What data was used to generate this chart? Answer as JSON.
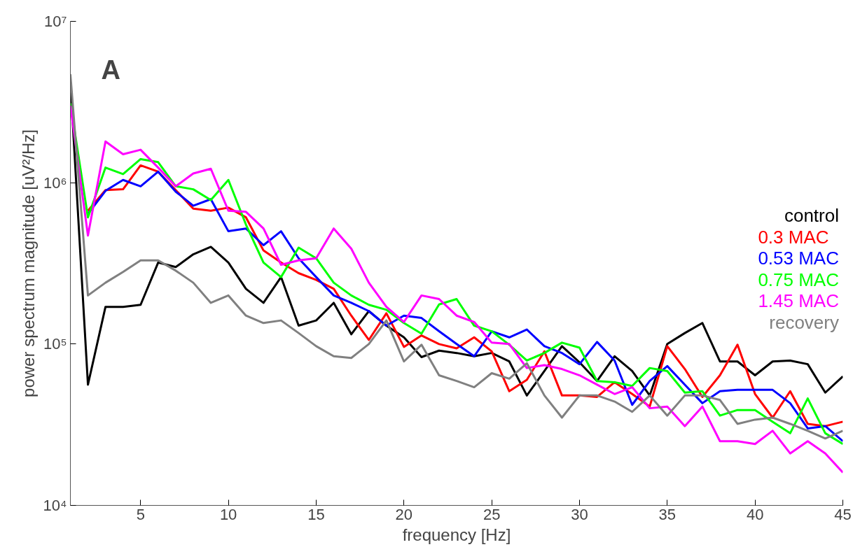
{
  "chart_data": {
    "type": "line",
    "xlabel": "frequency [Hz]",
    "ylabel": "power spectrum magnitude [uV²/Hz]",
    "annotations": [
      "A"
    ],
    "x": [
      1,
      2,
      3,
      4,
      5,
      6,
      7,
      8,
      9,
      10,
      11,
      12,
      13,
      14,
      15,
      16,
      17,
      18,
      19,
      20,
      21,
      22,
      23,
      24,
      25,
      26,
      27,
      28,
      29,
      30,
      31,
      32,
      33,
      34,
      35,
      36,
      37,
      38,
      39,
      40,
      41,
      42,
      43,
      44,
      45
    ],
    "xlim": [
      1,
      45
    ],
    "xticks": [
      5,
      10,
      15,
      20,
      25,
      30,
      35,
      40,
      45
    ],
    "ylim": [
      10000,
      10000000
    ],
    "yticks": [
      {
        "value": 10000,
        "label": "10⁴"
      },
      {
        "value": 100000,
        "label": "10⁵"
      },
      {
        "value": 1000000,
        "label": "10⁶"
      },
      {
        "value": 10000000,
        "label": "10⁷"
      }
    ],
    "log": "y",
    "grid": false,
    "legend": "right",
    "marker": "none",
    "line_style": "solid",
    "series": [
      {
        "name": "control",
        "color": "#000000",
        "values": [
          4200000,
          56000,
          170000,
          170000,
          175000,
          320000,
          300000,
          360000,
          400000,
          320000,
          220000,
          180000,
          260000,
          130000,
          140000,
          180000,
          115000,
          160000,
          130000,
          110000,
          83000,
          91000,
          88000,
          84000,
          88000,
          78000,
          48000,
          68000,
          97000,
          77000,
          59000,
          84000,
          68000,
          48000,
          100000,
          117000,
          135000,
          78000,
          78000,
          64000,
          78000,
          79000,
          75000,
          50000,
          63000
        ]
      },
      {
        "name": "0.3   MAC",
        "color": "#ff0000",
        "values": [
          null,
          670000,
          900000,
          910000,
          1280000,
          1170000,
          900000,
          690000,
          670000,
          700000,
          610000,
          380000,
          320000,
          275000,
          250000,
          220000,
          150000,
          106000,
          155000,
          96000,
          113000,
          100000,
          94000,
          110000,
          90000,
          51000,
          60000,
          90000,
          48000,
          48000,
          47000,
          58000,
          49000,
          41000,
          97000,
          70000,
          47000,
          64000,
          99000,
          49000,
          35000,
          51000,
          32000,
          31000,
          33000
        ]
      },
      {
        "name": "0.53 MAC",
        "color": "#0000ff",
        "values": [
          null,
          640000,
          890000,
          1040000,
          950000,
          1170000,
          880000,
          720000,
          790000,
          500000,
          520000,
          410000,
          500000,
          340000,
          260000,
          200000,
          180000,
          160000,
          130000,
          150000,
          145000,
          120000,
          100000,
          84000,
          120000,
          110000,
          123000,
          97000,
          88000,
          75000,
          103000,
          79000,
          42000,
          59000,
          73000,
          56000,
          43000,
          51000,
          52000,
          52000,
          52000,
          43000,
          30000,
          31000,
          25000
        ]
      },
      {
        "name": "0.75 MAC",
        "color": "#00ff00",
        "values": [
          3100000,
          610000,
          1240000,
          1130000,
          1400000,
          1340000,
          950000,
          910000,
          780000,
          1040000,
          550000,
          320000,
          260000,
          396000,
          340000,
          240000,
          200000,
          175000,
          163000,
          135000,
          116000,
          176000,
          190000,
          130000,
          120000,
          99000,
          79000,
          88000,
          102000,
          95000,
          59000,
          58000,
          55000,
          71000,
          68000,
          50000,
          51000,
          36000,
          39000,
          39000,
          33000,
          28000,
          46000,
          28000,
          24000
        ]
      },
      {
        "name": "1.45 MAC",
        "color": "#ff00ff",
        "values": [
          3000000,
          470000,
          1800000,
          1500000,
          1600000,
          1240000,
          950000,
          1140000,
          1220000,
          670000,
          660000,
          520000,
          310000,
          330000,
          340000,
          520000,
          390000,
          240000,
          170000,
          137000,
          200000,
          190000,
          150000,
          137000,
          102000,
          100000,
          71000,
          74000,
          70000,
          64000,
          56000,
          49000,
          54000,
          40000,
          41000,
          31000,
          41000,
          25000,
          25000,
          24000,
          29000,
          21000,
          25000,
          21000,
          16000
        ]
      },
      {
        "name": "recovery",
        "color": "#808080",
        "values": [
          4700000,
          200000,
          240000,
          280000,
          330000,
          330000,
          285000,
          240000,
          180000,
          200000,
          150000,
          135000,
          140000,
          117000,
          97000,
          84000,
          82000,
          100000,
          140000,
          78000,
          99000,
          64000,
          59000,
          54000,
          66000,
          61000,
          76000,
          48000,
          35000,
          48000,
          48000,
          44000,
          38000,
          48000,
          36000,
          48000,
          48000,
          45000,
          32000,
          34000,
          35000,
          32000,
          29000,
          26000,
          29000
        ]
      }
    ]
  }
}
